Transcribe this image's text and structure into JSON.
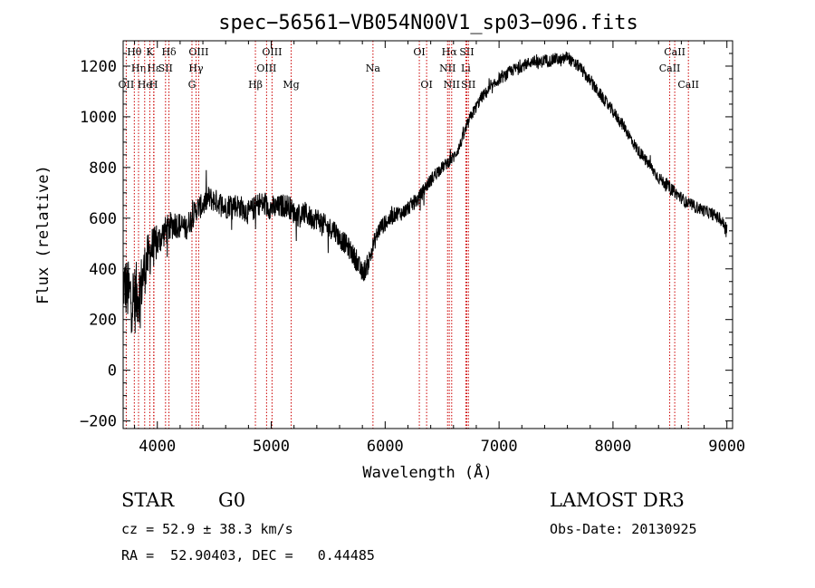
{
  "chart_data": {
    "type": "line",
    "title": "spec−56561−VB054N00V1_sp03−096.fits",
    "xlabel": "Wavelength (Å)",
    "ylabel": "Flux (relative)",
    "xlim": [
      3700,
      9050
    ],
    "ylim": [
      -230,
      1300
    ],
    "xticks": [
      4000,
      5000,
      6000,
      7000,
      8000,
      9000
    ],
    "yticks": [
      -200,
      0,
      200,
      400,
      600,
      800,
      1000,
      1200
    ],
    "ytick_labels": [
      "−200",
      "0",
      "200",
      "400",
      "600",
      "800",
      "1000",
      "1200"
    ],
    "series": [
      {
        "name": "flux",
        "x": [
          3700,
          3750,
          3800,
          3850,
          3900,
          3950,
          4000,
          4050,
          4100,
          4150,
          4200,
          4250,
          4300,
          4350,
          4400,
          4450,
          4500,
          4550,
          4600,
          4650,
          4700,
          4750,
          4800,
          4850,
          4900,
          4950,
          5000,
          5050,
          5100,
          5150,
          5200,
          5250,
          5300,
          5350,
          5400,
          5450,
          5500,
          5550,
          5600,
          5650,
          5700,
          5750,
          5800,
          5850,
          5900,
          5950,
          6000,
          6050,
          6100,
          6150,
          6200,
          6250,
          6300,
          6350,
          6400,
          6450,
          6500,
          6550,
          6600,
          6650,
          6700,
          6750,
          6800,
          6850,
          6900,
          6950,
          7000,
          7050,
          7100,
          7150,
          7200,
          7250,
          7300,
          7350,
          7400,
          7450,
          7500,
          7550,
          7600,
          7650,
          7700,
          7750,
          7800,
          7850,
          7900,
          7950,
          8000,
          8050,
          8100,
          8150,
          8200,
          8250,
          8300,
          8350,
          8400,
          8450,
          8500,
          8550,
          8600,
          8650,
          8700,
          8750,
          8800,
          8850,
          8900,
          8950,
          9000
        ],
        "values": [
          350,
          300,
          280,
          320,
          420,
          480,
          500,
          540,
          560,
          580,
          570,
          560,
          600,
          640,
          650,
          680,
          670,
          660,
          640,
          660,
          650,
          640,
          620,
          640,
          660,
          650,
          640,
          640,
          650,
          650,
          620,
          610,
          620,
          600,
          600,
          580,
          560,
          560,
          520,
          500,
          470,
          430,
          380,
          420,
          500,
          560,
          580,
          600,
          620,
          620,
          640,
          660,
          680,
          720,
          750,
          780,
          800,
          820,
          840,
          880,
          940,
          1000,
          1040,
          1080,
          1100,
          1120,
          1150,
          1160,
          1180,
          1190,
          1200,
          1210,
          1220,
          1210,
          1225,
          1220,
          1230,
          1220,
          1240,
          1210,
          1200,
          1170,
          1140,
          1110,
          1080,
          1050,
          1020,
          990,
          960,
          920,
          880,
          850,
          820,
          790,
          760,
          740,
          720,
          700,
          680,
          660,
          650,
          640,
          630,
          620,
          610,
          590,
          560
        ],
        "noise_amplitude": [
          200,
          220,
          240,
          200,
          170,
          150,
          110,
          100,
          100,
          95,
          90,
          85,
          80,
          80,
          80,
          80,
          80,
          80,
          80,
          80,
          80,
          80,
          80,
          80,
          80,
          80,
          80,
          80,
          80,
          80,
          75,
          75,
          75,
          75,
          75,
          75,
          75,
          70,
          70,
          70,
          70,
          70,
          70,
          70,
          60,
          60,
          55,
          55,
          50,
          50,
          50,
          50,
          50,
          45,
          45,
          45,
          40,
          40,
          40,
          40,
          40,
          40,
          40,
          40,
          40,
          40,
          40,
          40,
          40,
          40,
          40,
          40,
          40,
          40,
          40,
          40,
          40,
          40,
          40,
          40,
          40,
          40,
          40,
          40,
          40,
          40,
          40,
          40,
          40,
          40,
          40,
          40,
          40,
          40,
          40,
          40,
          40,
          40,
          40,
          40,
          40,
          40,
          40,
          40,
          40,
          40,
          40
        ]
      }
    ],
    "spectral_lines": [
      {
        "label": "Hθ",
        "wavelength": 3798,
        "row": 0
      },
      {
        "label": "OII",
        "wavelength": 3727,
        "row": 2
      },
      {
        "label": "Hη",
        "wavelength": 3835,
        "row": 1
      },
      {
        "label": "K",
        "wavelength": 3934,
        "row": 0
      },
      {
        "label": "He",
        "wavelength": 3889,
        "row": 2
      },
      {
        "label": "Hε",
        "wavelength": 3970,
        "row": 1
      },
      {
        "label": "SII",
        "wavelength": 4072,
        "row": 1
      },
      {
        "label": "H",
        "wavelength": 3968,
        "row": 2
      },
      {
        "label": "Hδ",
        "wavelength": 4102,
        "row": 0
      },
      {
        "label": "OIII",
        "wavelength": 4363,
        "row": 0
      },
      {
        "label": "Hγ",
        "wavelength": 4340,
        "row": 1
      },
      {
        "label": "G",
        "wavelength": 4304,
        "row": 2
      },
      {
        "label": "Hβ",
        "wavelength": 4861,
        "row": 2
      },
      {
        "label": "OIII",
        "wavelength": 5007,
        "row": 0
      },
      {
        "label": "OIII",
        "wavelength": 4959,
        "row": 1
      },
      {
        "label": "Mg",
        "wavelength": 5175,
        "row": 2
      },
      {
        "label": "Na",
        "wavelength": 5893,
        "row": 1
      },
      {
        "label": "OI",
        "wavelength": 6300,
        "row": 0
      },
      {
        "label": "OI",
        "wavelength": 6364,
        "row": 2
      },
      {
        "label": "Hα",
        "wavelength": 6563,
        "row": 0
      },
      {
        "label": "NII",
        "wavelength": 6548,
        "row": 1
      },
      {
        "label": "NII",
        "wavelength": 6584,
        "row": 2
      },
      {
        "label": "SII",
        "wavelength": 6717,
        "row": 0
      },
      {
        "label": "Li",
        "wavelength": 6708,
        "row": 1
      },
      {
        "label": "SII",
        "wavelength": 6731,
        "row": 2
      },
      {
        "label": "CaII",
        "wavelength": 8542,
        "row": 0
      },
      {
        "label": "CaII",
        "wavelength": 8498,
        "row": 1
      },
      {
        "label": "CaII",
        "wavelength": 8662,
        "row": 2
      }
    ],
    "line_color": "#000000",
    "marker_color": "#cc0000"
  },
  "info": {
    "object_class": "STAR",
    "subclass": "G0",
    "survey": "LAMOST DR3",
    "redshift": "cz = 52.9 ± 38.3 km/s",
    "obs_date": "Obs-Date: 20130925",
    "coords": "RA =  52.90403, DEC =   0.44485"
  }
}
